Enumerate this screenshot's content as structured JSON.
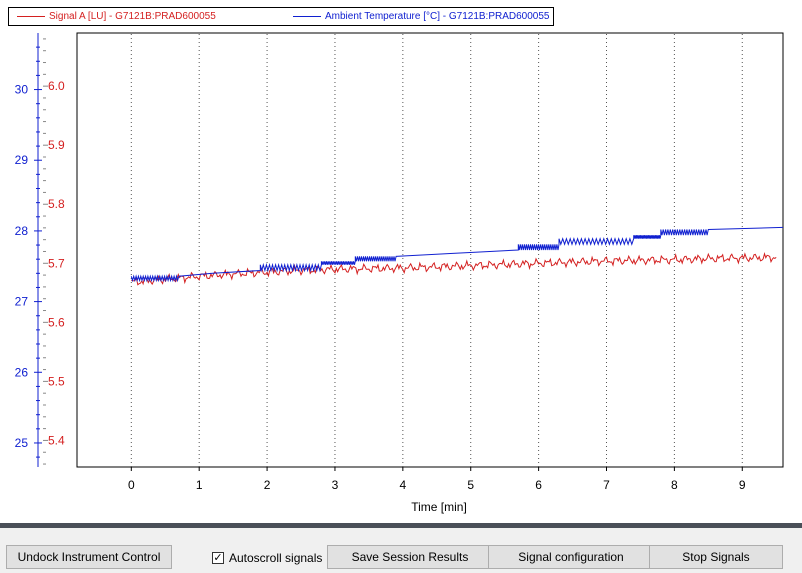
{
  "legend": {
    "items": [
      {
        "label": "Signal A [LU] - G7121B:PRAD600055",
        "color": "#d42020"
      },
      {
        "label": "Ambient Temperature [°C] - G7121B:PRAD600055",
        "color": "#1020d0"
      }
    ]
  },
  "chart_data": {
    "type": "line",
    "xlabel": "Time [min]",
    "xlim": [
      -0.8,
      9.6
    ],
    "x_ticks": [
      "0",
      "1",
      "2",
      "3",
      "4",
      "5",
      "6",
      "7",
      "8",
      "9"
    ],
    "grid": "vertical dotted lines at integer minutes",
    "axes": {
      "signal": {
        "ylim": [
          5.355,
          6.09
        ],
        "ticks": [
          "5.4",
          "5.5",
          "5.6",
          "5.7",
          "5.8",
          "5.9",
          "6.0"
        ],
        "color": "#d42020"
      },
      "temperature": {
        "ylim": [
          24.66,
          30.8
        ],
        "ticks": [
          "25",
          "26",
          "27",
          "28",
          "29",
          "30"
        ],
        "color": "#1020d0"
      }
    },
    "series": [
      {
        "name": "Signal A [LU] - G7121B:PRAD600055",
        "axis": "signal",
        "color": "#d42020",
        "x": [
          0,
          0.5,
          1,
          1.5,
          2,
          2.5,
          3,
          3.5,
          4,
          4.5,
          5,
          5.5,
          6,
          6.5,
          7,
          7.5,
          8,
          8.5,
          9,
          9.5
        ],
        "y": [
          5.668,
          5.673,
          5.678,
          5.682,
          5.685,
          5.688,
          5.69,
          5.691,
          5.692,
          5.694,
          5.696,
          5.698,
          5.7,
          5.702,
          5.704,
          5.705,
          5.706,
          5.708,
          5.709,
          5.71
        ]
      },
      {
        "name": "Ambient Temperature [°C] - G7121B:PRAD600055",
        "axis": "temperature",
        "color": "#1020d0",
        "x": [
          0,
          0.7,
          1.2,
          1.9,
          2.8,
          3.3,
          3.9,
          4.7,
          5.1,
          5.7,
          6.3,
          7.4,
          7.8,
          8.5,
          9.6
        ],
        "y": [
          27.3,
          27.36,
          27.4,
          27.44,
          27.52,
          27.57,
          27.64,
          27.68,
          27.7,
          27.73,
          27.81,
          27.89,
          27.94,
          28.02,
          28.05
        ]
      }
    ]
  },
  "toolbar": {
    "undock_label": "Undock Instrument Control",
    "autoscroll_label": "Autoscroll signals",
    "autoscroll_checked": true,
    "save_label": "Save Session Results",
    "signal_config_label": "Signal configuration",
    "stop_label": "Stop Signals"
  }
}
